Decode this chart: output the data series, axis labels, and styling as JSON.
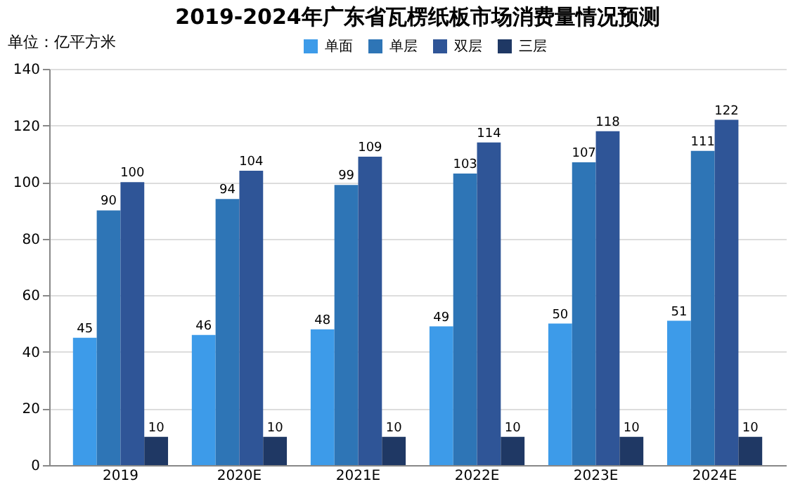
{
  "chart_data": {
    "type": "bar",
    "title": "2019-2024年广东省瓦楞纸板市场消费量情况预测",
    "ylabel": "单位：亿平方米",
    "categories": [
      "2019",
      "2020E",
      "2021E",
      "2022E",
      "2023E",
      "2024E"
    ],
    "series": [
      {
        "name": "单面",
        "color": "#3d9be9",
        "values": [
          45,
          46,
          48,
          49,
          50,
          51
        ]
      },
      {
        "name": "单层",
        "color": "#2e75b6",
        "values": [
          90,
          94,
          99,
          103,
          107,
          111
        ]
      },
      {
        "name": "双层",
        "color": "#2f5597",
        "values": [
          100,
          104,
          109,
          114,
          118,
          122
        ]
      },
      {
        "name": "三层",
        "color": "#1f3864",
        "values": [
          10,
          10,
          10,
          10,
          10,
          10
        ]
      }
    ],
    "ylim": [
      0,
      140
    ],
    "yticks": [
      0,
      20,
      40,
      60,
      80,
      100,
      120,
      140
    ],
    "grid": "y",
    "legend": "top",
    "data_labels": true
  }
}
